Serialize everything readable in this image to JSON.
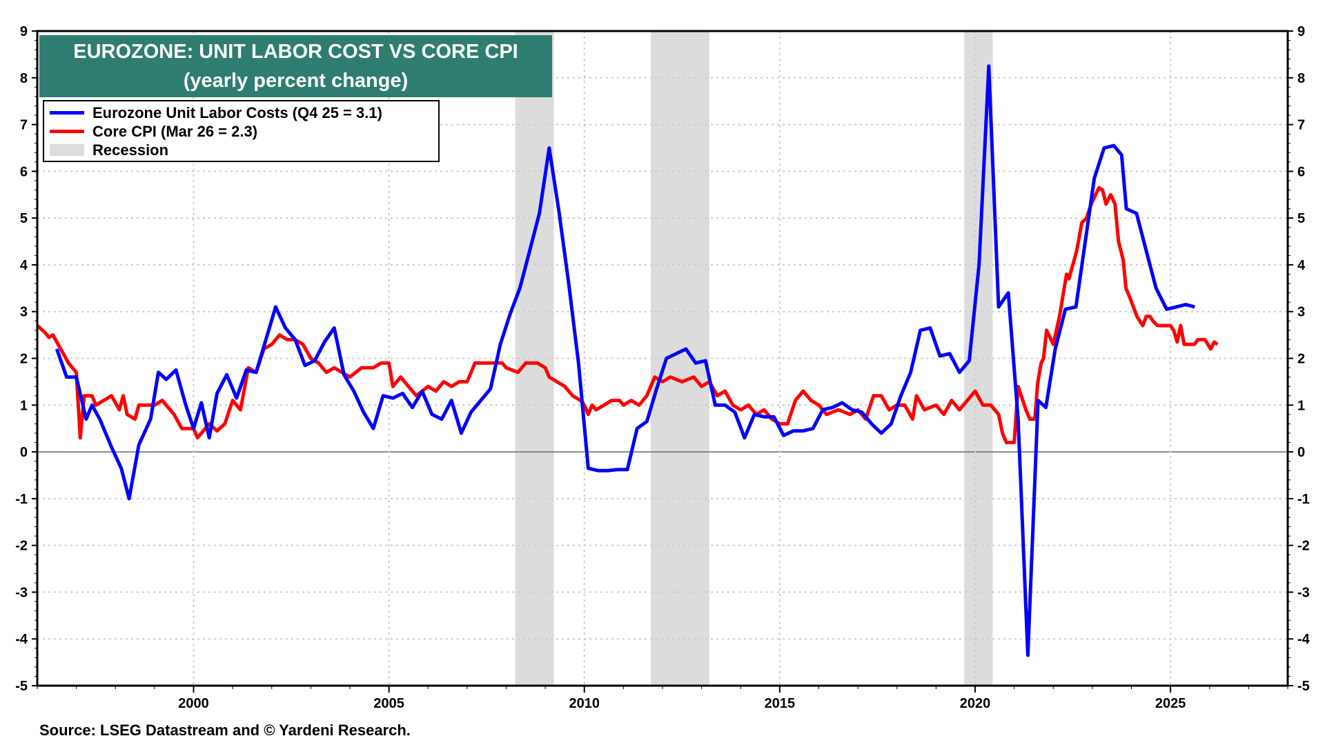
{
  "chart_data": {
    "type": "line",
    "title": "EUROZONE: UNIT LABOR COST VS CORE CPI",
    "subtitle": "(yearly percent change)",
    "source": "Source: LSEG Datastream and © Yardeni Research.",
    "xlim": [
      1996,
      2028
    ],
    "ylim": [
      -5,
      9
    ],
    "x_ticks": [
      "2000",
      "2005",
      "2010",
      "2015",
      "2020",
      "2025"
    ],
    "y_ticks": [
      "9",
      "8",
      "7",
      "6",
      "5",
      "4",
      "3",
      "2",
      "1",
      "0",
      "-1",
      "-2",
      "-3",
      "-4",
      "-5"
    ],
    "grid": true,
    "legend_position": "top-left",
    "recessions": [
      [
        2008.23,
        2009.22
      ],
      [
        2011.7,
        2013.2
      ],
      [
        2019.72,
        2020.45
      ]
    ],
    "recession_label": "Recession",
    "recession_color": "#dcdcdc",
    "series": [
      {
        "name": "Eurozone Unit Labor Costs (Q4 25 = 3.1)",
        "color": "#0000ff",
        "points": [
          [
            1996.5,
            2.2
          ],
          [
            1996.75,
            1.6
          ],
          [
            1997.0,
            1.6
          ],
          [
            1997.25,
            0.7
          ],
          [
            1997.4,
            1.0
          ],
          [
            1997.6,
            0.7
          ],
          [
            1997.9,
            0.1
          ],
          [
            1998.15,
            -0.35
          ],
          [
            1998.35,
            -1.0
          ],
          [
            1998.6,
            0.15
          ],
          [
            1998.9,
            0.7
          ],
          [
            1999.1,
            1.7
          ],
          [
            1999.3,
            1.55
          ],
          [
            1999.55,
            1.75
          ],
          [
            1999.8,
            1.0
          ],
          [
            2000.0,
            0.5
          ],
          [
            2000.2,
            1.05
          ],
          [
            2000.4,
            0.3
          ],
          [
            2000.6,
            1.25
          ],
          [
            2000.85,
            1.65
          ],
          [
            2001.1,
            1.15
          ],
          [
            2001.35,
            1.75
          ],
          [
            2001.6,
            1.7
          ],
          [
            2001.85,
            2.4
          ],
          [
            2002.1,
            3.1
          ],
          [
            2002.35,
            2.65
          ],
          [
            2002.6,
            2.4
          ],
          [
            2002.85,
            1.85
          ],
          [
            2003.1,
            1.95
          ],
          [
            2003.35,
            2.35
          ],
          [
            2003.6,
            2.65
          ],
          [
            2003.85,
            1.65
          ],
          [
            2004.1,
            1.3
          ],
          [
            2004.35,
            0.85
          ],
          [
            2004.6,
            0.5
          ],
          [
            2004.85,
            1.2
          ],
          [
            2005.1,
            1.15
          ],
          [
            2005.35,
            1.25
          ],
          [
            2005.6,
            0.95
          ],
          [
            2005.85,
            1.3
          ],
          [
            2006.1,
            0.8
          ],
          [
            2006.35,
            0.7
          ],
          [
            2006.6,
            1.1
          ],
          [
            2006.85,
            0.4
          ],
          [
            2007.1,
            0.85
          ],
          [
            2007.35,
            1.1
          ],
          [
            2007.6,
            1.35
          ],
          [
            2007.85,
            2.3
          ],
          [
            2008.1,
            2.95
          ],
          [
            2008.35,
            3.5
          ],
          [
            2008.6,
            4.3
          ],
          [
            2008.85,
            5.1
          ],
          [
            2009.1,
            6.5
          ],
          [
            2009.35,
            5.15
          ],
          [
            2009.6,
            3.6
          ],
          [
            2009.85,
            1.9
          ],
          [
            2010.1,
            -0.35
          ],
          [
            2010.35,
            -0.4
          ],
          [
            2010.6,
            -0.4
          ],
          [
            2010.85,
            -0.38
          ],
          [
            2011.1,
            -0.38
          ],
          [
            2011.35,
            0.5
          ],
          [
            2011.6,
            0.65
          ],
          [
            2011.85,
            1.35
          ],
          [
            2012.1,
            2.0
          ],
          [
            2012.35,
            2.1
          ],
          [
            2012.6,
            2.2
          ],
          [
            2012.85,
            1.9
          ],
          [
            2013.1,
            1.95
          ],
          [
            2013.35,
            1.0
          ],
          [
            2013.6,
            1.0
          ],
          [
            2013.85,
            0.85
          ],
          [
            2014.1,
            0.3
          ],
          [
            2014.35,
            0.8
          ],
          [
            2014.6,
            0.75
          ],
          [
            2014.85,
            0.75
          ],
          [
            2015.1,
            0.35
          ],
          [
            2015.35,
            0.45
          ],
          [
            2015.6,
            0.45
          ],
          [
            2015.85,
            0.5
          ],
          [
            2016.1,
            0.9
          ],
          [
            2016.35,
            0.95
          ],
          [
            2016.6,
            1.05
          ],
          [
            2016.85,
            0.9
          ],
          [
            2017.1,
            0.85
          ],
          [
            2017.35,
            0.6
          ],
          [
            2017.6,
            0.4
          ],
          [
            2017.85,
            0.6
          ],
          [
            2018.1,
            1.2
          ],
          [
            2018.35,
            1.7
          ],
          [
            2018.6,
            2.6
          ],
          [
            2018.85,
            2.65
          ],
          [
            2019.1,
            2.05
          ],
          [
            2019.35,
            2.1
          ],
          [
            2019.6,
            1.7
          ],
          [
            2019.85,
            1.95
          ],
          [
            2020.1,
            4.0
          ],
          [
            2020.35,
            8.25
          ],
          [
            2020.6,
            3.1
          ],
          [
            2020.85,
            3.4
          ],
          [
            2021.1,
            0.7
          ],
          [
            2021.35,
            -4.35
          ],
          [
            2021.61,
            1.1
          ],
          [
            2021.81,
            0.95
          ],
          [
            2022.05,
            2.2
          ],
          [
            2022.31,
            3.05
          ],
          [
            2022.58,
            3.1
          ],
          [
            2023.05,
            5.85
          ],
          [
            2023.3,
            6.5
          ],
          [
            2023.55,
            6.55
          ],
          [
            2023.75,
            6.35
          ],
          [
            2023.87,
            5.2
          ],
          [
            2024.13,
            5.1
          ],
          [
            2024.38,
            4.3
          ],
          [
            2024.63,
            3.5
          ],
          [
            2024.9,
            3.05
          ],
          [
            2025.15,
            3.1
          ],
          [
            2025.39,
            3.15
          ],
          [
            2025.62,
            3.1
          ]
        ]
      },
      {
        "name": "Core CPI (Mar 26 = 2.3)",
        "color": "#ff0000",
        "points": [
          [
            1996.0,
            2.7
          ],
          [
            1996.2,
            2.55
          ],
          [
            1996.3,
            2.45
          ],
          [
            1996.4,
            2.5
          ],
          [
            1996.6,
            2.2
          ],
          [
            1996.8,
            1.9
          ],
          [
            1997.0,
            1.7
          ],
          [
            1997.1,
            0.3
          ],
          [
            1997.2,
            1.2
          ],
          [
            1997.4,
            1.2
          ],
          [
            1997.5,
            1.0
          ],
          [
            1997.7,
            1.1
          ],
          [
            1997.9,
            1.2
          ],
          [
            1998.1,
            0.9
          ],
          [
            1998.2,
            1.2
          ],
          [
            1998.3,
            0.8
          ],
          [
            1998.5,
            0.7
          ],
          [
            1998.6,
            1.0
          ],
          [
            1999.0,
            1.0
          ],
          [
            1999.2,
            1.1
          ],
          [
            1999.5,
            0.8
          ],
          [
            1999.7,
            0.5
          ],
          [
            2000.0,
            0.5
          ],
          [
            2000.1,
            0.3
          ],
          [
            2000.4,
            0.6
          ],
          [
            2000.6,
            0.45
          ],
          [
            2000.8,
            0.6
          ],
          [
            2001.0,
            1.1
          ],
          [
            2001.2,
            0.9
          ],
          [
            2001.4,
            1.8
          ],
          [
            2001.6,
            1.7
          ],
          [
            2001.8,
            2.2
          ],
          [
            2002.0,
            2.3
          ],
          [
            2002.2,
            2.5
          ],
          [
            2002.4,
            2.4
          ],
          [
            2002.6,
            2.4
          ],
          [
            2002.8,
            2.3
          ],
          [
            2003.0,
            2.0
          ],
          [
            2003.2,
            1.9
          ],
          [
            2003.4,
            1.7
          ],
          [
            2003.6,
            1.8
          ],
          [
            2004.0,
            1.6
          ],
          [
            2004.3,
            1.8
          ],
          [
            2004.6,
            1.8
          ],
          [
            2004.8,
            1.9
          ],
          [
            2005.0,
            1.9
          ],
          [
            2005.1,
            1.4
          ],
          [
            2005.3,
            1.6
          ],
          [
            2005.5,
            1.4
          ],
          [
            2005.7,
            1.2
          ],
          [
            2006.0,
            1.4
          ],
          [
            2006.2,
            1.3
          ],
          [
            2006.4,
            1.5
          ],
          [
            2006.6,
            1.4
          ],
          [
            2006.8,
            1.5
          ],
          [
            2007.0,
            1.5
          ],
          [
            2007.2,
            1.9
          ],
          [
            2007.6,
            1.9
          ],
          [
            2007.9,
            1.9
          ],
          [
            2008.0,
            1.8
          ],
          [
            2008.3,
            1.7
          ],
          [
            2008.5,
            1.9
          ],
          [
            2008.8,
            1.9
          ],
          [
            2009.0,
            1.8
          ],
          [
            2009.1,
            1.6
          ],
          [
            2009.3,
            1.5
          ],
          [
            2009.5,
            1.4
          ],
          [
            2009.7,
            1.2
          ],
          [
            2009.9,
            1.1
          ],
          [
            2010.0,
            1.0
          ],
          [
            2010.1,
            0.8
          ],
          [
            2010.2,
            1.0
          ],
          [
            2010.3,
            0.9
          ],
          [
            2010.5,
            1.0
          ],
          [
            2010.7,
            1.1
          ],
          [
            2010.9,
            1.1
          ],
          [
            2011.0,
            1.0
          ],
          [
            2011.2,
            1.1
          ],
          [
            2011.4,
            1.0
          ],
          [
            2011.6,
            1.2
          ],
          [
            2011.8,
            1.6
          ],
          [
            2012.0,
            1.5
          ],
          [
            2012.2,
            1.6
          ],
          [
            2012.5,
            1.5
          ],
          [
            2012.8,
            1.6
          ],
          [
            2013.0,
            1.4
          ],
          [
            2013.2,
            1.5
          ],
          [
            2013.4,
            1.2
          ],
          [
            2013.6,
            1.3
          ],
          [
            2013.8,
            1.0
          ],
          [
            2014.0,
            0.9
          ],
          [
            2014.2,
            1.0
          ],
          [
            2014.4,
            0.8
          ],
          [
            2014.6,
            0.9
          ],
          [
            2014.8,
            0.7
          ],
          [
            2015.0,
            0.6
          ],
          [
            2015.2,
            0.6
          ],
          [
            2015.4,
            1.1
          ],
          [
            2015.6,
            1.3
          ],
          [
            2015.8,
            1.1
          ],
          [
            2016.0,
            1.0
          ],
          [
            2016.2,
            0.8
          ],
          [
            2016.5,
            0.9
          ],
          [
            2016.8,
            0.8
          ],
          [
            2017.0,
            0.9
          ],
          [
            2017.2,
            0.7
          ],
          [
            2017.4,
            1.2
          ],
          [
            2017.6,
            1.2
          ],
          [
            2017.8,
            0.9
          ],
          [
            2018.0,
            1.0
          ],
          [
            2018.2,
            1.0
          ],
          [
            2018.4,
            0.7
          ],
          [
            2018.5,
            1.2
          ],
          [
            2018.7,
            0.9
          ],
          [
            2019.0,
            1.0
          ],
          [
            2019.2,
            0.8
          ],
          [
            2019.4,
            1.1
          ],
          [
            2019.6,
            0.9
          ],
          [
            2019.8,
            1.1
          ],
          [
            2020.0,
            1.3
          ],
          [
            2020.2,
            1.0
          ],
          [
            2020.4,
            1.0
          ],
          [
            2020.6,
            0.8
          ],
          [
            2020.7,
            0.4
          ],
          [
            2020.8,
            0.2
          ],
          [
            2021.0,
            0.2
          ],
          [
            2021.1,
            1.4
          ],
          [
            2021.3,
            0.9
          ],
          [
            2021.4,
            0.7
          ],
          [
            2021.53,
            0.7
          ],
          [
            2021.6,
            1.47
          ],
          [
            2021.69,
            1.9
          ],
          [
            2021.75,
            2.0
          ],
          [
            2021.83,
            2.6
          ],
          [
            2022.0,
            2.3
          ],
          [
            2022.16,
            2.9
          ],
          [
            2022.28,
            3.5
          ],
          [
            2022.34,
            3.8
          ],
          [
            2022.4,
            3.7
          ],
          [
            2022.6,
            4.3
          ],
          [
            2022.73,
            4.9
          ],
          [
            2022.85,
            5.0
          ],
          [
            2022.97,
            5.3
          ],
          [
            2023.17,
            5.65
          ],
          [
            2023.26,
            5.6
          ],
          [
            2023.35,
            5.3
          ],
          [
            2023.47,
            5.5
          ],
          [
            2023.58,
            5.3
          ],
          [
            2023.67,
            4.5
          ],
          [
            2023.79,
            4.1
          ],
          [
            2023.86,
            3.5
          ],
          [
            2023.96,
            3.3
          ],
          [
            2024.14,
            2.9
          ],
          [
            2024.29,
            2.7
          ],
          [
            2024.38,
            2.9
          ],
          [
            2024.47,
            2.9
          ],
          [
            2024.55,
            2.8
          ],
          [
            2024.67,
            2.7
          ],
          [
            2025.0,
            2.7
          ],
          [
            2025.08,
            2.6
          ],
          [
            2025.17,
            2.35
          ],
          [
            2025.26,
            2.7
          ],
          [
            2025.35,
            2.3
          ],
          [
            2025.61,
            2.3
          ],
          [
            2025.7,
            2.4
          ],
          [
            2025.88,
            2.4
          ],
          [
            2026.03,
            2.2
          ],
          [
            2026.12,
            2.35
          ],
          [
            2026.2,
            2.3
          ]
        ]
      }
    ]
  }
}
